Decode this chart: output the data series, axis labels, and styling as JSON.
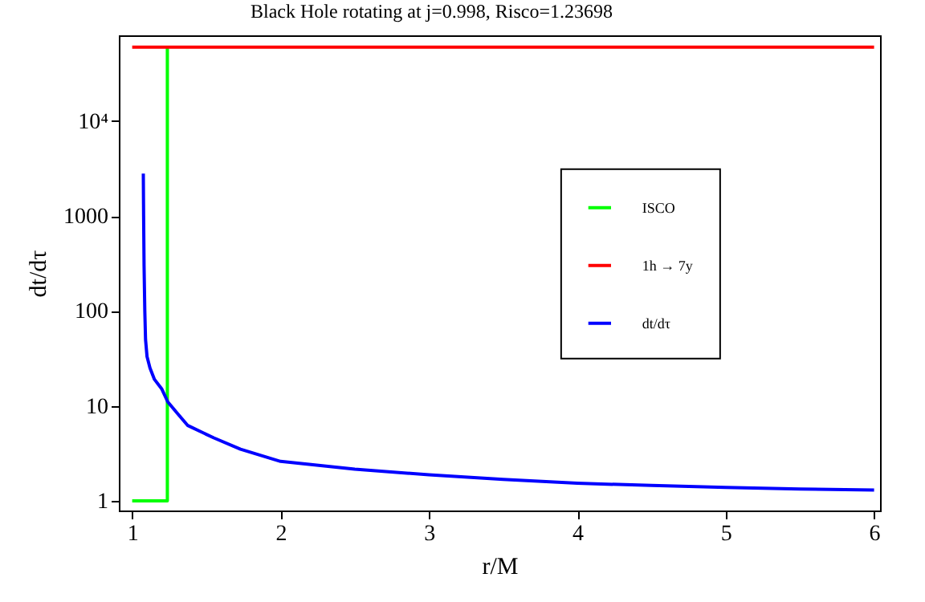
{
  "chart_data": {
    "type": "line",
    "title": "Black Hole rotating at j=0.998, Risco=1.23698",
    "xlabel": "r/M",
    "ylabel": "dt/dτ",
    "log": "y",
    "grid": false,
    "legend": "right",
    "marker": "none",
    "line_style": "solid",
    "xlim": [
      0.91,
      6.04
    ],
    "xticks": [
      1,
      2,
      3,
      4,
      5,
      6
    ],
    "ylim": [
      0.79,
      80000
    ],
    "yticks": [
      1,
      10,
      100,
      1000,
      {
        "value": 10000,
        "label": "10⁴"
      }
    ],
    "series": [
      {
        "name": "ISCO",
        "color": "#00ff00",
        "x": [
          1,
          1.237,
          1.237
        ],
        "values": [
          1,
          1,
          60000
        ]
      },
      {
        "name": "1h → 7y",
        "color": "#ff0000",
        "x": [
          1,
          6
        ],
        "values": [
          60000,
          60000
        ]
      },
      {
        "name": "dt/dτ",
        "color": "#0000ff",
        "x": [
          1.075,
          1.077,
          1.08,
          1.085,
          1.09,
          1.1,
          1.12,
          1.15,
          1.2,
          1.24,
          1.3,
          1.375,
          1.55,
          1.73,
          2,
          2.5,
          3,
          3.5,
          4,
          4.5,
          5,
          5.5,
          6
        ],
        "values": [
          2800,
          1000,
          300,
          100,
          50,
          33,
          25,
          19,
          15,
          11,
          8.5,
          6.2,
          4.6,
          3.5,
          2.6,
          2.15,
          1.88,
          1.68,
          1.53,
          1.45,
          1.38,
          1.33,
          1.3
        ]
      }
    ]
  }
}
